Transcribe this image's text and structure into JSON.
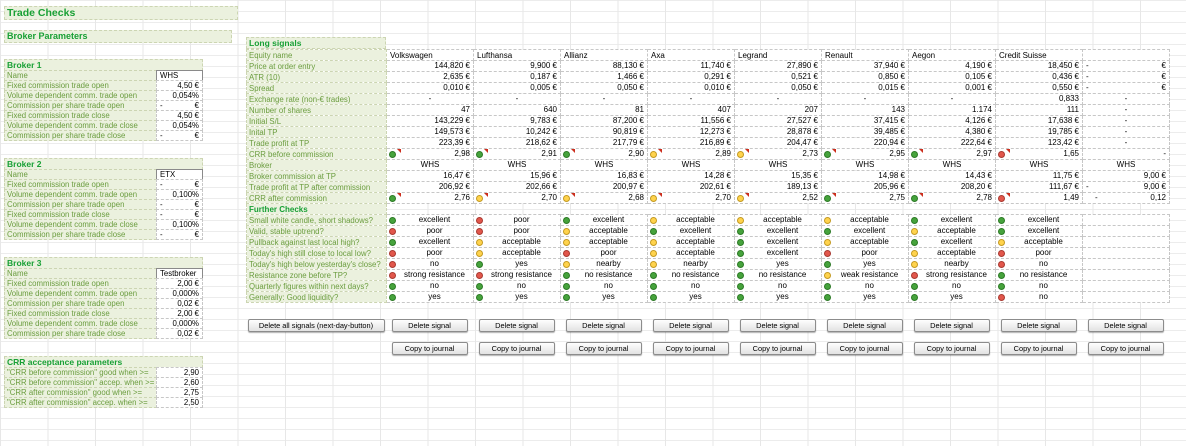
{
  "title": "Trade Checks",
  "dot_colors": {
    "green": "#46a33c",
    "yellow": "#ffd34d",
    "red": "#e2574c"
  },
  "broker_parameters": {
    "heading": "Broker Parameters",
    "brokers": [
      {
        "heading": "Broker 1",
        "rows": [
          {
            "label": "Name",
            "value": "WHS"
          },
          {
            "label": "Fixed commission trade open",
            "value": "4,50 €"
          },
          {
            "label": "Volume dependent comm. trade open",
            "value": "0,054%"
          },
          {
            "label": "Commission per share trade open",
            "value": "-    €"
          },
          {
            "label": "Fixed commission trade close",
            "value": "4,50 €"
          },
          {
            "label": "Volume dependent comm. trade close",
            "value": "0,054%"
          },
          {
            "label": "Commission per share trade close",
            "value": "-    €"
          }
        ]
      },
      {
        "heading": "Broker 2",
        "rows": [
          {
            "label": "Name",
            "value": "ETX"
          },
          {
            "label": "Fixed commission trade open",
            "value": "-    €"
          },
          {
            "label": "Volume dependent comm. trade open",
            "value": "0,100%"
          },
          {
            "label": "Commission per share trade open",
            "value": "-    €"
          },
          {
            "label": "Fixed commission trade close",
            "value": "-    €"
          },
          {
            "label": "Volume dependent comm. trade close",
            "value": "0,100%"
          },
          {
            "label": "Commission per share trade close",
            "value": "-    €"
          }
        ]
      },
      {
        "heading": "Broker 3",
        "rows": [
          {
            "label": "Name",
            "value": "Testbroker"
          },
          {
            "label": "Fixed commission trade open",
            "value": "2,00 €"
          },
          {
            "label": "Volume dependent comm. trade open",
            "value": "0,000%"
          },
          {
            "label": "Commission per share trade open",
            "value": "0,02 €"
          },
          {
            "label": "Fixed commission trade close",
            "value": "2,00 €"
          },
          {
            "label": "Volume dependent comm. trade close",
            "value": "0,000%"
          },
          {
            "label": "Commission per share trade close",
            "value": "0,02 €"
          }
        ]
      }
    ],
    "crr_acceptance": {
      "heading": "CRR acceptance parameters",
      "rows": [
        {
          "label": "\"CRR before commission\" good when >=",
          "value": "2,90"
        },
        {
          "label": "\"CRR before commission\" accep. when >=",
          "value": "2,60"
        },
        {
          "label": "\"CRR after commission\" good when >=",
          "value": "2,75"
        },
        {
          "label": "\"CRR after commission\" accep. when >=",
          "value": "2,50"
        }
      ]
    }
  },
  "long_signals": {
    "heading": "Long signals",
    "header_label": "Equity name",
    "columns": [
      "Volkswagen",
      "Lufthansa",
      "Allianz",
      "Axa",
      "Legrand",
      "Renault",
      "Aegon",
      "Credit Suisse",
      ""
    ],
    "rows": [
      {
        "label": "Price at order entry",
        "values": [
          "144,820 €",
          "9,900 €",
          "88,130 €",
          "11,740 €",
          "27,890 €",
          "37,940 €",
          "4,190 €",
          "18,450 €",
          "-    €"
        ]
      },
      {
        "label": "ATR (10)",
        "values": [
          "2,635 €",
          "0,187 €",
          "1,466 €",
          "0,291 €",
          "0,521 €",
          "0,850 €",
          "0,105 €",
          "0,436 €",
          "-    €"
        ]
      },
      {
        "label": "Spread",
        "values": [
          "0,010 €",
          "0,005 €",
          "0,050 €",
          "0,010 €",
          "0,050 €",
          "0,015 €",
          "0,001 €",
          "0,550 €",
          "-    €"
        ]
      },
      {
        "label": "Exchange rate (non-€ trades)",
        "values": [
          "-",
          "-",
          "-",
          "-",
          "-",
          "-",
          "-",
          "0,833",
          "-"
        ]
      },
      {
        "label": "Number of shares",
        "values": [
          "47",
          "640",
          "81",
          "407",
          "207",
          "143",
          "1.174",
          "111",
          "-"
        ]
      },
      {
        "label": "Initial S/L",
        "values": [
          "143,229 €",
          "9,783 €",
          "87,200 €",
          "11,556 €",
          "27,527 €",
          "37,415 €",
          "4,126 €",
          "17,638 €",
          "-"
        ]
      },
      {
        "label": "Inital TP",
        "values": [
          "149,573 €",
          "10,242 €",
          "90,819 €",
          "12,273 €",
          "28,878 €",
          "39,485 €",
          "4,380 €",
          "19,785 €",
          "-"
        ]
      },
      {
        "label": "Trade profit at TP",
        "values": [
          "223,39 €",
          "218,62 €",
          "217,79 €",
          "216,89 €",
          "204,47 €",
          "220,94 €",
          "222,64 €",
          "123,42 €",
          "-"
        ]
      },
      {
        "label": "CRR before commission",
        "type": "dots",
        "align": "right",
        "comment": true,
        "cells": [
          [
            "g",
            "2,98"
          ],
          [
            "g",
            "2,91"
          ],
          [
            "g",
            "2,90"
          ],
          [
            "y",
            "2,89"
          ],
          [
            "y",
            "2,73"
          ],
          [
            "g",
            "2,95"
          ],
          [
            "g",
            "2,97"
          ],
          [
            "r",
            "1,65"
          ],
          [
            "",
            "-"
          ]
        ]
      },
      {
        "label": "Broker",
        "type": "center",
        "values": [
          "WHS",
          "WHS",
          "WHS",
          "WHS",
          "WHS",
          "WHS",
          "WHS",
          "WHS",
          "WHS"
        ]
      },
      {
        "label": "Broker commission at TP",
        "values": [
          "16,47 €",
          "15,96 €",
          "16,83 €",
          "14,28 €",
          "15,35 €",
          "14,98 €",
          "14,43 €",
          "11,75 €",
          "9,00 €"
        ]
      },
      {
        "label": "Trade profit at TP after commission",
        "values": [
          "206,92 €",
          "202,66 €",
          "200,97 €",
          "202,61 €",
          "189,13 €",
          "205,96 €",
          "208,20 €",
          "111,67 €",
          "-    9,00 €"
        ]
      },
      {
        "label": "CRR after commission",
        "type": "dots",
        "align": "right",
        "comment": true,
        "cells": [
          [
            "g",
            "2,76"
          ],
          [
            "y",
            "2,70"
          ],
          [
            "y",
            "2,68"
          ],
          [
            "y",
            "2,70"
          ],
          [
            "y",
            "2,52"
          ],
          [
            "g",
            "2,75"
          ],
          [
            "g",
            "2,78"
          ],
          [
            "r",
            "1,49"
          ],
          [
            "",
            "-    0,12"
          ]
        ]
      },
      {
        "label": "Further Checks",
        "type": "section"
      },
      {
        "label": "Small white candle, short shadows?",
        "type": "dots",
        "align": "center",
        "cells": [
          [
            "g",
            "excellent"
          ],
          [
            "r",
            "poor"
          ],
          [
            "g",
            "excellent"
          ],
          [
            "y",
            "acceptable"
          ],
          [
            "y",
            "acceptable"
          ],
          [
            "y",
            "acceptable"
          ],
          [
            "g",
            "excellent"
          ],
          [
            "g",
            "excellent"
          ],
          [
            "",
            ""
          ]
        ]
      },
      {
        "label": "Valid, stable uptrend?",
        "type": "dots",
        "align": "center",
        "cells": [
          [
            "r",
            "poor"
          ],
          [
            "r",
            "poor"
          ],
          [
            "y",
            "acceptable"
          ],
          [
            "g",
            "excellent"
          ],
          [
            "g",
            "excellent"
          ],
          [
            "g",
            "excellent"
          ],
          [
            "y",
            "acceptable"
          ],
          [
            "g",
            "excellent"
          ],
          [
            "",
            ""
          ]
        ]
      },
      {
        "label": "Pullback against last local high?",
        "type": "dots",
        "align": "center",
        "cells": [
          [
            "g",
            "excellent"
          ],
          [
            "y",
            "acceptable"
          ],
          [
            "y",
            "acceptable"
          ],
          [
            "y",
            "acceptable"
          ],
          [
            "g",
            "excellent"
          ],
          [
            "y",
            "acceptable"
          ],
          [
            "g",
            "excellent"
          ],
          [
            "y",
            "acceptable"
          ],
          [
            "",
            ""
          ]
        ]
      },
      {
        "label": "Today's high still close to local low?",
        "type": "dots",
        "align": "center",
        "cells": [
          [
            "r",
            "poor"
          ],
          [
            "y",
            "acceptable"
          ],
          [
            "r",
            "poor"
          ],
          [
            "y",
            "acceptable"
          ],
          [
            "g",
            "excellent"
          ],
          [
            "r",
            "poor"
          ],
          [
            "y",
            "acceptable"
          ],
          [
            "r",
            "poor"
          ],
          [
            "",
            ""
          ]
        ]
      },
      {
        "label": "Today's high below yesterday's close?",
        "type": "dots",
        "align": "center",
        "cells": [
          [
            "r",
            "no"
          ],
          [
            "g",
            "yes"
          ],
          [
            "y",
            "nearby"
          ],
          [
            "y",
            "nearby"
          ],
          [
            "g",
            "yes"
          ],
          [
            "g",
            "yes"
          ],
          [
            "y",
            "nearby"
          ],
          [
            "r",
            "no"
          ],
          [
            "",
            ""
          ]
        ]
      },
      {
        "label": "Resistance zone before TP?",
        "type": "dots",
        "align": "center",
        "cells": [
          [
            "r",
            "strong resistance"
          ],
          [
            "r",
            "strong resistance"
          ],
          [
            "g",
            "no resistance"
          ],
          [
            "g",
            "no resistance"
          ],
          [
            "g",
            "no resistance"
          ],
          [
            "y",
            "weak resistance"
          ],
          [
            "r",
            "strong resistance"
          ],
          [
            "g",
            "no resistance"
          ],
          [
            "",
            ""
          ]
        ]
      },
      {
        "label": "Quarterly figures within next days?",
        "type": "dots",
        "align": "center",
        "cells": [
          [
            "g",
            "no"
          ],
          [
            "g",
            "no"
          ],
          [
            "g",
            "no"
          ],
          [
            "g",
            "no"
          ],
          [
            "g",
            "no"
          ],
          [
            "g",
            "no"
          ],
          [
            "g",
            "no"
          ],
          [
            "g",
            "no"
          ],
          [
            "",
            ""
          ]
        ]
      },
      {
        "label": "Generally: Good liquidity?",
        "type": "dots",
        "align": "center",
        "cells": [
          [
            "g",
            "yes"
          ],
          [
            "g",
            "yes"
          ],
          [
            "g",
            "yes"
          ],
          [
            "g",
            "yes"
          ],
          [
            "g",
            "yes"
          ],
          [
            "g",
            "yes"
          ],
          [
            "g",
            "yes"
          ],
          [
            "r",
            "no"
          ],
          [
            "",
            ""
          ]
        ]
      }
    ],
    "buttons": {
      "delete_all": "Delete all signals (next-day-button)",
      "delete_signal": "Delete signal",
      "copy_to_journal": "Copy to journal"
    }
  }
}
